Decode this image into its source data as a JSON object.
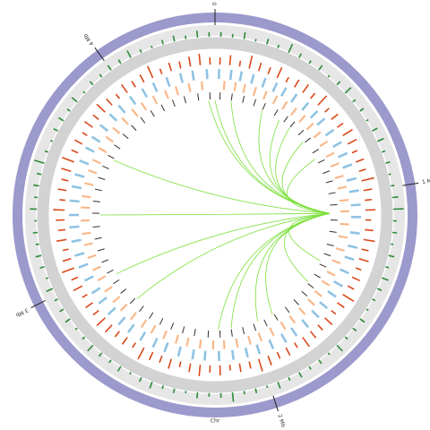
{
  "chart_data": {
    "type": "circos",
    "xlabel": "Chr",
    "xlim": [
      0,
      4.44
    ],
    "xticks": [
      {
        "value": 0,
        "label": "0 Mb"
      },
      {
        "value": 1,
        "label": "1 Mb"
      },
      {
        "value": 2,
        "label": "2 Mb"
      },
      {
        "value": 3,
        "label": "3 Mb"
      },
      {
        "value": 4,
        "label": "4 Mb"
      }
    ],
    "ideogram_color": "#9c99cc",
    "outer_histogram": {
      "color": "#2e8b3a",
      "ylim": [
        0,
        1
      ],
      "values": [
        0.4,
        0.3,
        0.6,
        0.2,
        0.5,
        0.3,
        0.8,
        0.4,
        0.3,
        0.5,
        0.2,
        0.4,
        0.7,
        0.3,
        0.4,
        0.2,
        0.5,
        0.6,
        0.3,
        0.4,
        0.2,
        0.3,
        0.5,
        0.9,
        0.3,
        0.4,
        0.2,
        0.5,
        0.3,
        0.6,
        0.4,
        0.3,
        0.2,
        0.5,
        0.4,
        0.3,
        0.7,
        0.2,
        0.4,
        0.3,
        0.5,
        0.3,
        0.6,
        0.2,
        0.4,
        0.3,
        0.8,
        0.4,
        0.3,
        0.5,
        0.2,
        0.4,
        0.3,
        0.6,
        0.4,
        0.2,
        0.5,
        0.3,
        0.4,
        0.7,
        0.3,
        0.2,
        0.5,
        0.4,
        0.3,
        0.6,
        0.2,
        0.4,
        0.5,
        0.3,
        0.4,
        0.2,
        0.6,
        0.3,
        0.5,
        0.4,
        0.9,
        0.3,
        0.2,
        0.4,
        0.5,
        0.3,
        0.6,
        0.2,
        0.4,
        0.3,
        0.5,
        0.4,
        0.7,
        0.3,
        0.2,
        0.4,
        0.5,
        0.3,
        0.6,
        0.4
      ]
    },
    "inner_histogram": {
      "color": "#d9481a",
      "ylim": [
        0,
        1
      ],
      "values": [
        0.5,
        0.7,
        0.4,
        0.9,
        0.6,
        0.5,
        0.8,
        0.4,
        0.6,
        0.7,
        0.5,
        0.9,
        0.4,
        0.6,
        0.5,
        0.8,
        0.7,
        0.4,
        0.6,
        0.5,
        0.9,
        0.6,
        0.5,
        0.7,
        0.4,
        0.6,
        0.8,
        0.5,
        0.7,
        0.4,
        0.6,
        0.5,
        0.9,
        0.6,
        0.4,
        0.7,
        0.5,
        0.6,
        0.8,
        0.4,
        0.6,
        0.5,
        0.7,
        0.9,
        0.5,
        0.6,
        0.4,
        0.7,
        0.5,
        0.8,
        0.6,
        0.4,
        0.7,
        0.5,
        0.6,
        0.9,
        0.4,
        0.6,
        0.5,
        0.7,
        0.8,
        0.5,
        0.6,
        0.4,
        0.7,
        0.5,
        0.9,
        0.6,
        0.4,
        0.7,
        0.5,
        0.6,
        0.8,
        0.4,
        0.6,
        0.5,
        0.7,
        0.9,
        0.5,
        0.6,
        0.4,
        0.7,
        0.5,
        0.8,
        0.6,
        0.4,
        0.7,
        0.5,
        0.6,
        0.9,
        0.4,
        0.6,
        0.5,
        0.7,
        0.8,
        0.5
      ]
    },
    "blue_features": {
      "color": "#8fc3e3",
      "positions": [
        0.02,
        0.08,
        0.13,
        0.19,
        0.25,
        0.31,
        0.36,
        0.42,
        0.49,
        0.55,
        0.6,
        0.67,
        0.74,
        0.8,
        0.86,
        0.93,
        0.99,
        1.06,
        1.12,
        1.2,
        1.27,
        1.33,
        1.4,
        1.47,
        1.53,
        1.6,
        1.66,
        1.73,
        1.8,
        1.86,
        1.93,
        2.0,
        2.06,
        2.13,
        2.2,
        2.27,
        2.33,
        2.4,
        2.47,
        2.53,
        2.6,
        2.67,
        2.73,
        2.8,
        2.87,
        2.93,
        3.0,
        3.07,
        3.13,
        3.2,
        3.27,
        3.33,
        3.4,
        3.47,
        3.53,
        3.6,
        3.67,
        3.73,
        3.8,
        3.87,
        3.93,
        4.0,
        4.07,
        4.13,
        4.2,
        4.27,
        4.33,
        4.4
      ]
    },
    "orange_features": {
      "color": "#f9b88a",
      "positions": [
        0.05,
        0.11,
        0.16,
        0.22,
        0.28,
        0.34,
        0.4,
        0.46,
        0.52,
        0.58,
        0.64,
        0.7,
        0.77,
        0.83,
        0.9,
        0.96,
        1.03,
        1.09,
        1.16,
        1.23,
        1.3,
        1.37,
        1.44,
        1.5,
        1.57,
        1.63,
        1.7,
        1.77,
        1.83,
        1.9,
        1.97,
        2.03,
        2.1,
        2.17,
        2.23,
        2.3,
        2.37,
        2.43,
        2.5,
        2.57,
        2.63,
        2.7,
        2.77,
        2.83,
        2.9,
        2.97,
        3.03,
        3.1,
        3.17,
        3.23,
        3.3,
        3.37,
        3.43,
        3.5,
        3.57,
        3.63,
        3.7,
        3.77,
        3.83,
        3.9,
        3.97,
        4.03,
        4.1,
        4.17,
        4.23,
        4.3,
        4.37
      ]
    },
    "black_features": {
      "color": "#3a2e2e",
      "positions": [
        0.03,
        0.1,
        0.17,
        0.24,
        0.3,
        0.38,
        0.45,
        0.5,
        0.57,
        0.63,
        0.71,
        0.78,
        0.85,
        0.91,
        0.98,
        1.05,
        1.14,
        1.21,
        1.29,
        1.35,
        1.42,
        1.49,
        1.56,
        1.62,
        1.69,
        1.76,
        1.84,
        1.91,
        1.98,
        2.05,
        2.12,
        2.19,
        2.26,
        2.34,
        2.41,
        2.48,
        2.55,
        2.62,
        2.69,
        2.76,
        2.84,
        2.91,
        2.98,
        3.05,
        3.12,
        3.19,
        3.26,
        3.34,
        3.41,
        3.48,
        3.55,
        3.62,
        3.69,
        3.76,
        3.84,
        3.91,
        3.98,
        4.05,
        4.12,
        4.19,
        4.26,
        4.34,
        4.41
      ]
    },
    "links": {
      "color": "#7de03c",
      "pairs": [
        [
          1.1,
          4.4
        ],
        [
          1.1,
          0.0
        ],
        [
          1.1,
          0.1
        ],
        [
          1.1,
          0.3
        ],
        [
          1.1,
          0.42
        ],
        [
          1.1,
          0.5
        ],
        [
          1.1,
          0.62
        ],
        [
          1.1,
          0.75
        ],
        [
          1.1,
          3.68
        ],
        [
          1.1,
          3.33
        ],
        [
          1.1,
          2.95
        ],
        [
          1.1,
          2.75
        ],
        [
          1.1,
          2.2
        ],
        [
          1.1,
          2.12
        ],
        [
          1.1,
          1.95
        ],
        [
          1.1,
          1.85
        ],
        [
          1.1,
          1.55
        ],
        [
          1.1,
          1.4
        ]
      ]
    }
  }
}
